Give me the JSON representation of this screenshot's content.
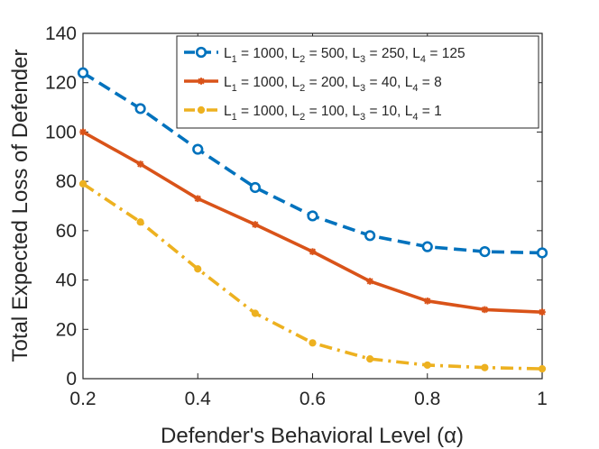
{
  "chart_data": {
    "type": "line",
    "title": "",
    "xlabel": "Defender's Behavioral Level (α)",
    "ylabel": "Total Expected Loss of Defender",
    "xlim": [
      0.2,
      1
    ],
    "ylim": [
      0,
      140
    ],
    "xticks": [
      0.2,
      0.4,
      0.6,
      0.8,
      1
    ],
    "xtick_labels": [
      "0.2",
      "0.4",
      "0.6",
      "0.8",
      "1"
    ],
    "yticks": [
      0,
      20,
      40,
      60,
      80,
      100,
      120,
      140
    ],
    "ytick_labels": [
      "0",
      "20",
      "40",
      "60",
      "80",
      "100",
      "120",
      "140"
    ],
    "grid": false,
    "legend_position": "top-right",
    "x": [
      0.2,
      0.3,
      0.4,
      0.5,
      0.6,
      0.7,
      0.8,
      0.9,
      1.0
    ],
    "series": [
      {
        "name": "L1 = 1000, L2 = 500, L3 = 250, L4 = 125",
        "legend_parts": [
          [
            "L",
            "1",
            " = 1000, "
          ],
          [
            "L",
            "2",
            " = 500, "
          ],
          [
            "L",
            "3",
            " = 250, "
          ],
          [
            "L",
            "4",
            " = 125"
          ]
        ],
        "values": [
          124,
          109.5,
          93,
          77.5,
          66,
          58,
          53.5,
          51.5,
          51
        ],
        "color": "#0072BD",
        "line_style": "dashed",
        "marker": "circle"
      },
      {
        "name": "L1 = 1000, L2 = 200, L3 = 40, L4 = 8",
        "legend_parts": [
          [
            "L",
            "1",
            " = 1000, "
          ],
          [
            "L",
            "2",
            " = 200, "
          ],
          [
            "L",
            "3",
            " = 40, "
          ],
          [
            "L",
            "4",
            " = 8"
          ]
        ],
        "values": [
          100,
          87,
          73,
          62.5,
          51.5,
          39.5,
          31.5,
          28,
          27
        ],
        "color": "#D95319",
        "line_style": "solid",
        "marker": "asterisk"
      },
      {
        "name": "L1 = 1000, L2 = 100, L3 = 10, L4 = 1",
        "legend_parts": [
          [
            "L",
            "1",
            " = 1000, "
          ],
          [
            "L",
            "2",
            " = 100, "
          ],
          [
            "L",
            "3",
            " = 10, "
          ],
          [
            "L",
            "4",
            " = 1"
          ]
        ],
        "values": [
          79,
          63.5,
          44.5,
          26.5,
          14.5,
          8,
          5.5,
          4.5,
          4
        ],
        "color": "#EDB120",
        "line_style": "dashdot",
        "marker": "dot"
      }
    ]
  }
}
